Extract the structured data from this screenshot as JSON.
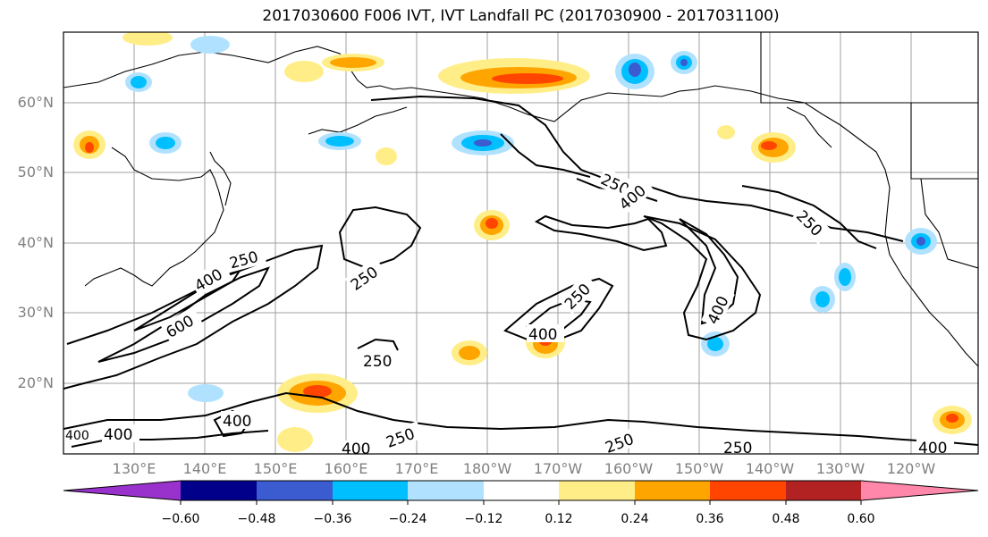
{
  "title": "2017030600 F006 IVT, IVT Landfall PC (2017030900 - 2017031100)",
  "axes": {
    "lat_labels": [
      "60°N",
      "50°N",
      "40°N",
      "30°N",
      "20°N"
    ],
    "lon_labels": [
      "130°E",
      "140°E",
      "150°E",
      "160°E",
      "170°E",
      "180°W",
      "170°W",
      "160°W",
      "150°W",
      "140°W",
      "130°W",
      "120°W"
    ]
  },
  "contours": {
    "color": "#000000",
    "labels": [
      "250",
      "400",
      "250",
      "600",
      "400",
      "250",
      "250",
      "250",
      "400",
      "400",
      "250",
      "400",
      "400",
      "250",
      "250",
      "400",
      "250",
      "400",
      "400",
      "400"
    ]
  },
  "colorbar": {
    "colors": [
      "#9932cc",
      "#00008b",
      "#3b5bd0",
      "#00bfff",
      "#b0e2ff",
      "#ffffff",
      "#ffee88",
      "#ffa500",
      "#ff4500",
      "#b22222",
      "#ff88aa"
    ],
    "ticks": [
      "−0.60",
      "−0.48",
      "−0.36",
      "−0.24",
      "−0.12",
      "0.12",
      "0.24",
      "0.36",
      "0.48",
      "0.60"
    ]
  }
}
